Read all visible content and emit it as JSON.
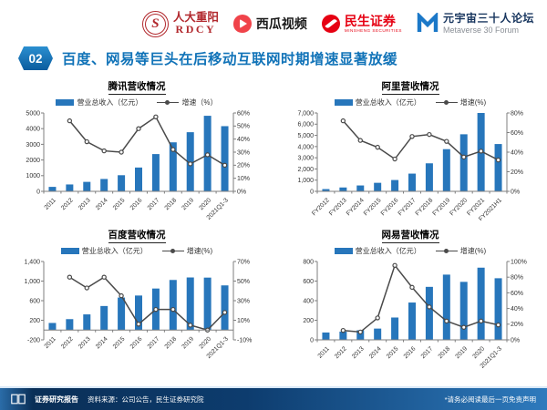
{
  "header": {
    "logos": [
      {
        "name": "rdcy",
        "line1": "人大重阳",
        "line2": "RDCY",
        "seal_letter": "S"
      },
      {
        "name": "xigua",
        "label": "西瓜视频"
      },
      {
        "name": "minsheng",
        "label": "民生证券",
        "sub": "MINSHENG SECURITIES"
      },
      {
        "name": "metaverse",
        "label": "元宇宙三十人论坛",
        "sub": "Metaverse 30 Forum"
      }
    ]
  },
  "title": {
    "badge": "02",
    "text": "百度、网易等巨头在后移动互联网时期增速显著放缓"
  },
  "footer": {
    "report": "证券研究报告",
    "source": "资料来源：公司公告，民生证券研究院",
    "disclaimer": "*请务必阅读最后一页免责声明"
  },
  "colors": {
    "bar": "#2776bb",
    "line": "#4a4a4a",
    "axis": "#7f7f7f",
    "title_blue": "#1173b8",
    "logo_red": "#e60012",
    "metaverse_blue": "#1b78c8",
    "footer_dark": "#0a2f57",
    "footer_light": "#2e7abd"
  },
  "chart_data": [
    {
      "type": "bar+line",
      "title": "腾讯营收情况",
      "legend": [
        "营业总收入（亿元）",
        "增速（%）"
      ],
      "categories": [
        "2011",
        "2012",
        "2013",
        "2014",
        "2015",
        "2016",
        "2017",
        "2018",
        "2019",
        "2020",
        "2021Q1-3"
      ],
      "series": [
        {
          "name": "营业总收入（亿元）",
          "type": "bar",
          "axis": "left",
          "values": [
            285,
            439,
            604,
            789,
            1029,
            1519,
            2378,
            3127,
            3773,
            4821,
            4159
          ]
        },
        {
          "name": "增速（%）",
          "type": "line",
          "axis": "right",
          "values": [
            null,
            54,
            38,
            31,
            30,
            48,
            57,
            32,
            21,
            28,
            20
          ]
        }
      ],
      "left_axis": {
        "min": 0,
        "max": 5000,
        "step": 1000,
        "comma": false
      },
      "right_axis": {
        "min": 0,
        "max": 60,
        "step": 10,
        "suffix": "%"
      }
    },
    {
      "type": "bar+line",
      "title": "阿里营收情况",
      "legend": [
        "营业总收入（亿元）",
        "增速(%)"
      ],
      "categories": [
        "FY2012",
        "FY2013",
        "FY2014",
        "FY2015",
        "FY2016",
        "FY2017",
        "FY2018",
        "FY2019",
        "FY2020",
        "FY2021",
        "FY2021H1"
      ],
      "series": [
        {
          "name": "营业总收入（亿元）",
          "type": "bar",
          "axis": "left",
          "values": [
            200,
            345,
            525,
            762,
            1011,
            1583,
            2503,
            3768,
            5097,
            7000,
            4226
          ]
        },
        {
          "name": "增速(%)",
          "type": "line",
          "axis": "right",
          "values": [
            null,
            72,
            52,
            45,
            33,
            56,
            58,
            51,
            35,
            41,
            32
          ]
        }
      ],
      "left_axis": {
        "min": 0,
        "max": 7000,
        "step": 1000,
        "comma": true
      },
      "right_axis": {
        "min": 0,
        "max": 80,
        "step": 20,
        "suffix": "%"
      }
    },
    {
      "type": "bar+line",
      "title": "百度营收情况",
      "legend": [
        "营业总收入（亿元）",
        "增速(%)"
      ],
      "categories": [
        "2011",
        "2012",
        "2013",
        "2014",
        "2015",
        "2016",
        "2017",
        "2018",
        "2019",
        "2020",
        "2021Q1-3"
      ],
      "series": [
        {
          "name": "营业总收入（亿元）",
          "type": "bar",
          "axis": "left",
          "values": [
            145,
            223,
            320,
            491,
            664,
            705,
            848,
            1023,
            1074,
            1071,
            912
          ]
        },
        {
          "name": "增速(%)",
          "type": "line",
          "axis": "right",
          "values": [
            null,
            54,
            43,
            54,
            35,
            6,
            21,
            21,
            5,
            0,
            18
          ]
        }
      ],
      "left_axis": {
        "min": -200,
        "max": 1400,
        "step": 400,
        "comma": true
      },
      "right_axis": {
        "min": -10,
        "max": 70,
        "step": 20,
        "suffix": "%"
      }
    },
    {
      "type": "bar+line",
      "title": "网易营收情况",
      "legend": [
        "营业总收入（亿元）",
        "增速(%)"
      ],
      "categories": [
        "2011",
        "2012",
        "2013",
        "2014",
        "2015",
        "2016",
        "2017",
        "2018",
        "2019",
        "2020",
        "2021Q1-3"
      ],
      "series": [
        {
          "name": "营业总收入（亿元）",
          "type": "bar",
          "axis": "left",
          "values": [
            75,
            84,
            98,
            115,
            228,
            381,
            541,
            666,
            592,
            737,
            629
          ]
        },
        {
          "name": "增速(%)",
          "type": "line",
          "axis": "right",
          "values": [
            null,
            12,
            10,
            28,
            95,
            67,
            42,
            24,
            16,
            24,
            19
          ]
        }
      ],
      "left_axis": {
        "min": 0,
        "max": 800,
        "step": 200,
        "comma": false
      },
      "right_axis": {
        "min": 0,
        "max": 100,
        "step": 20,
        "suffix": "%"
      }
    }
  ]
}
